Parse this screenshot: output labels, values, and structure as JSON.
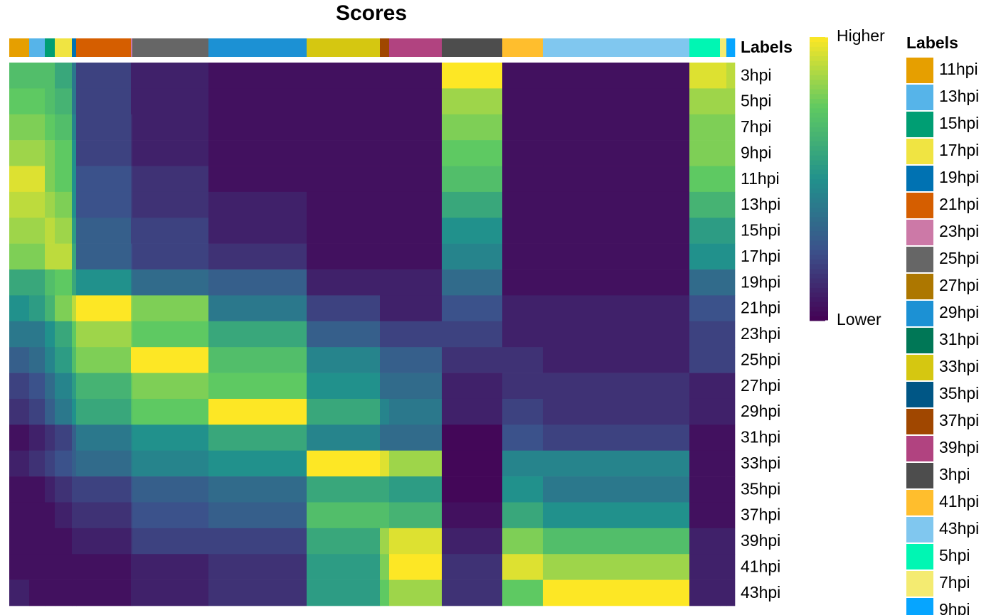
{
  "chart_data": {
    "type": "heatmap",
    "title": "Scores",
    "annotation_name": "Labels",
    "rows": [
      "3hpi",
      "5hpi",
      "7hpi",
      "9hpi",
      "11hpi",
      "13hpi",
      "15hpi",
      "17hpi",
      "19hpi",
      "21hpi",
      "23hpi",
      "25hpi",
      "27hpi",
      "29hpi",
      "31hpi",
      "33hpi",
      "35hpi",
      "37hpi",
      "39hpi",
      "41hpi",
      "43hpi"
    ],
    "column_groups": [
      {
        "label": "11hpi",
        "count": 28
      },
      {
        "label": "13hpi",
        "count": 22
      },
      {
        "label": "15hpi",
        "count": 14
      },
      {
        "label": "17hpi",
        "count": 24
      },
      {
        "label": "19hpi",
        "count": 6
      },
      {
        "label": "21hpi",
        "count": 77
      },
      {
        "label": "23hpi",
        "count": 2
      },
      {
        "label": "25hpi",
        "count": 107
      },
      {
        "label": "29hpi",
        "count": 138
      },
      {
        "label": "33hpi",
        "count": 103
      },
      {
        "label": "37hpi",
        "count": 13
      },
      {
        "label": "39hpi",
        "count": 74
      },
      {
        "label": "3hpi",
        "count": 85
      },
      {
        "label": "41hpi",
        "count": 57
      },
      {
        "label": "43hpi",
        "count": 206
      },
      {
        "label": "5hpi",
        "count": 43
      },
      {
        "label": "7hpi",
        "count": 9
      },
      {
        "label": "9hpi",
        "count": 12
      }
    ],
    "matrix": [
      [
        0.7,
        0.7,
        0.7,
        0.6,
        0.4,
        0.2,
        0.1,
        0.1,
        0.05,
        0.05,
        0.05,
        0.05,
        1.0,
        0.05,
        0.05,
        0.95,
        0.95,
        0.9
      ],
      [
        0.75,
        0.75,
        0.7,
        0.65,
        0.4,
        0.2,
        0.1,
        0.1,
        0.05,
        0.05,
        0.05,
        0.05,
        0.85,
        0.05,
        0.05,
        0.85,
        0.85,
        0.85
      ],
      [
        0.8,
        0.8,
        0.75,
        0.7,
        0.45,
        0.2,
        0.15,
        0.1,
        0.05,
        0.05,
        0.05,
        0.05,
        0.8,
        0.05,
        0.05,
        0.8,
        0.8,
        0.8
      ],
      [
        0.85,
        0.85,
        0.8,
        0.75,
        0.5,
        0.2,
        0.15,
        0.1,
        0.05,
        0.05,
        0.05,
        0.05,
        0.75,
        0.05,
        0.05,
        0.8,
        0.8,
        0.8
      ],
      [
        0.95,
        0.95,
        0.8,
        0.75,
        0.5,
        0.25,
        0.2,
        0.15,
        0.05,
        0.05,
        0.05,
        0.05,
        0.7,
        0.05,
        0.05,
        0.75,
        0.75,
        0.75
      ],
      [
        0.9,
        0.9,
        0.85,
        0.8,
        0.5,
        0.25,
        0.2,
        0.15,
        0.1,
        0.05,
        0.05,
        0.05,
        0.6,
        0.05,
        0.05,
        0.65,
        0.65,
        0.65
      ],
      [
        0.85,
        0.85,
        0.9,
        0.85,
        0.55,
        0.3,
        0.2,
        0.2,
        0.1,
        0.05,
        0.05,
        0.05,
        0.5,
        0.05,
        0.05,
        0.55,
        0.55,
        0.55
      ],
      [
        0.8,
        0.8,
        0.9,
        0.9,
        0.6,
        0.3,
        0.25,
        0.2,
        0.15,
        0.05,
        0.05,
        0.05,
        0.45,
        0.05,
        0.05,
        0.5,
        0.5,
        0.5
      ],
      [
        0.6,
        0.6,
        0.7,
        0.75,
        0.6,
        0.5,
        0.4,
        0.35,
        0.3,
        0.1,
        0.1,
        0.1,
        0.35,
        0.05,
        0.05,
        0.35,
        0.35,
        0.35
      ],
      [
        0.5,
        0.55,
        0.65,
        0.8,
        0.9,
        1.0,
        0.85,
        0.8,
        0.4,
        0.2,
        0.1,
        0.1,
        0.25,
        0.1,
        0.1,
        0.25,
        0.25,
        0.25
      ],
      [
        0.4,
        0.4,
        0.5,
        0.6,
        0.75,
        0.85,
        0.8,
        0.75,
        0.6,
        0.3,
        0.2,
        0.2,
        0.2,
        0.1,
        0.1,
        0.2,
        0.2,
        0.2
      ],
      [
        0.3,
        0.35,
        0.45,
        0.55,
        0.7,
        0.8,
        1.0,
        1.0,
        0.7,
        0.45,
        0.3,
        0.3,
        0.15,
        0.15,
        0.1,
        0.2,
        0.2,
        0.2
      ],
      [
        0.2,
        0.25,
        0.35,
        0.45,
        0.55,
        0.65,
        0.75,
        0.8,
        0.75,
        0.5,
        0.35,
        0.35,
        0.1,
        0.15,
        0.15,
        0.1,
        0.1,
        0.1
      ],
      [
        0.15,
        0.2,
        0.3,
        0.4,
        0.5,
        0.6,
        0.7,
        0.75,
        1.0,
        0.6,
        0.45,
        0.4,
        0.1,
        0.2,
        0.15,
        0.1,
        0.1,
        0.1
      ],
      [
        0.05,
        0.1,
        0.15,
        0.2,
        0.3,
        0.4,
        0.45,
        0.5,
        0.6,
        0.45,
        0.35,
        0.35,
        0.02,
        0.25,
        0.2,
        0.05,
        0.05,
        0.05
      ],
      [
        0.1,
        0.15,
        0.2,
        0.25,
        0.3,
        0.35,
        0.4,
        0.45,
        0.5,
        1.0,
        0.95,
        0.85,
        0.02,
        0.45,
        0.45,
        0.05,
        0.05,
        0.05
      ],
      [
        0.05,
        0.05,
        0.1,
        0.15,
        0.2,
        0.2,
        0.25,
        0.3,
        0.35,
        0.6,
        0.6,
        0.55,
        0.02,
        0.5,
        0.4,
        0.05,
        0.05,
        0.05
      ],
      [
        0.05,
        0.05,
        0.05,
        0.1,
        0.15,
        0.15,
        0.2,
        0.25,
        0.3,
        0.7,
        0.7,
        0.65,
        0.05,
        0.6,
        0.5,
        0.05,
        0.05,
        0.05
      ],
      [
        0.05,
        0.05,
        0.05,
        0.05,
        0.1,
        0.1,
        0.15,
        0.2,
        0.2,
        0.6,
        0.85,
        0.95,
        0.1,
        0.8,
        0.7,
        0.1,
        0.1,
        0.1
      ],
      [
        0.05,
        0.05,
        0.05,
        0.05,
        0.05,
        0.05,
        0.1,
        0.1,
        0.15,
        0.55,
        0.8,
        1.0,
        0.15,
        0.95,
        0.85,
        0.1,
        0.1,
        0.1
      ],
      [
        0.1,
        0.05,
        0.05,
        0.05,
        0.05,
        0.05,
        0.1,
        0.1,
        0.15,
        0.55,
        0.75,
        0.85,
        0.15,
        0.75,
        1.0,
        0.1,
        0.1,
        0.1
      ]
    ],
    "zlim": [
      0,
      1
    ],
    "zticks": [
      {
        "value": 0,
        "label": "Lower"
      },
      {
        "value": 1,
        "label": "Higher"
      }
    ],
    "colorscale": [
      "#440154",
      "#3b528b",
      "#21918c",
      "#5ec962",
      "#fde725"
    ],
    "legend": {
      "title": "Labels",
      "items": [
        {
          "label": "11hpi",
          "color": "#E69F00"
        },
        {
          "label": "13hpi",
          "color": "#56B4E9"
        },
        {
          "label": "15hpi",
          "color": "#009E73"
        },
        {
          "label": "17hpi",
          "color": "#F0E442"
        },
        {
          "label": "19hpi",
          "color": "#0072B2"
        },
        {
          "label": "21hpi",
          "color": "#D55E00"
        },
        {
          "label": "23hpi",
          "color": "#CC79A7"
        },
        {
          "label": "25hpi",
          "color": "#666666"
        },
        {
          "label": "27hpi",
          "color": "#AD7700"
        },
        {
          "label": "29hpi",
          "color": "#1C91D4"
        },
        {
          "label": "31hpi",
          "color": "#007756"
        },
        {
          "label": "33hpi",
          "color": "#D5C711"
        },
        {
          "label": "35hpi",
          "color": "#005685"
        },
        {
          "label": "37hpi",
          "color": "#A04700"
        },
        {
          "label": "39hpi",
          "color": "#B14380"
        },
        {
          "label": "3hpi",
          "color": "#4D4D4D"
        },
        {
          "label": "41hpi",
          "color": "#FFBE2D"
        },
        {
          "label": "43hpi",
          "color": "#80C7EF"
        },
        {
          "label": "5hpi",
          "color": "#00F6B3"
        },
        {
          "label": "7hpi",
          "color": "#F4EB71"
        },
        {
          "label": "9hpi",
          "color": "#06A5FF"
        }
      ]
    }
  }
}
